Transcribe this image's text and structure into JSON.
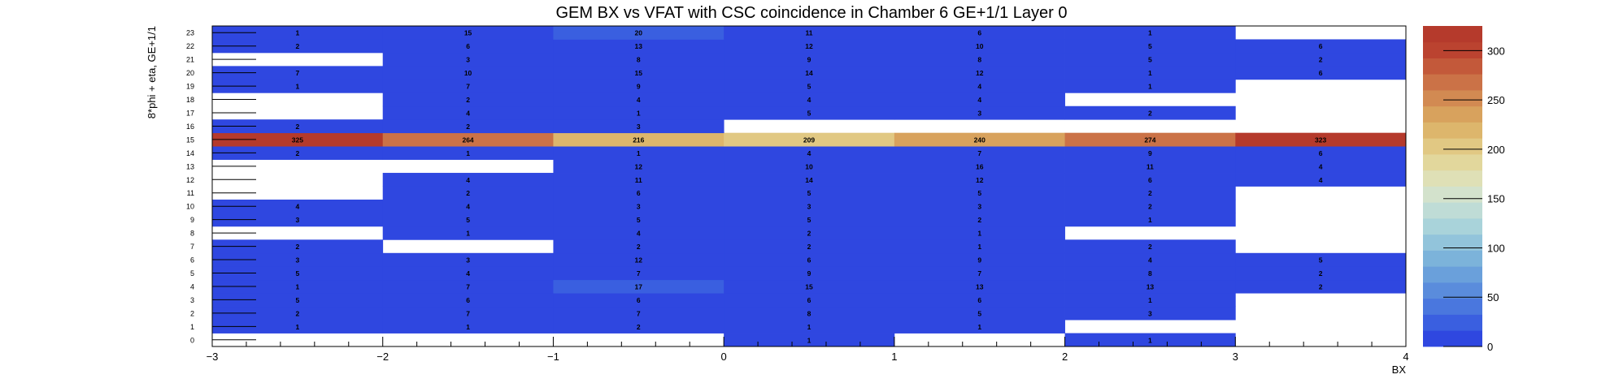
{
  "chart_data": {
    "type": "heatmap",
    "title": "GEM BX vs VFAT with CSC coincidence in Chamber 6 GE+1/1 Layer 0",
    "xlabel": "BX",
    "ylabel": "8*phi + eta, GE+1/1",
    "xlim": [
      -3,
      4
    ],
    "x_bins": [
      -3,
      -2,
      -1,
      0,
      1,
      2,
      3,
      4
    ],
    "x_ticks": [
      "−3",
      "−2",
      "−1",
      "0",
      "1",
      "2",
      "3",
      "4"
    ],
    "y_bins": [
      "0",
      "1",
      "2",
      "3",
      "4",
      "5",
      "6",
      "7",
      "8",
      "9",
      "10",
      "11",
      "12",
      "13",
      "14",
      "15",
      "16",
      "17",
      "18",
      "19",
      "20",
      "21",
      "22",
      "23"
    ],
    "zlim": [
      0,
      325
    ],
    "z_ticks": [
      0,
      50,
      100,
      150,
      200,
      250,
      300
    ],
    "values": [
      [
        null,
        null,
        null,
        1,
        null,
        1,
        null
      ],
      [
        1,
        1,
        2,
        1,
        1,
        null,
        null
      ],
      [
        2,
        7,
        7,
        8,
        5,
        3,
        null
      ],
      [
        5,
        6,
        6,
        6,
        6,
        1,
        null
      ],
      [
        1,
        7,
        17,
        15,
        13,
        13,
        2
      ],
      [
        5,
        4,
        7,
        9,
        7,
        8,
        2
      ],
      [
        3,
        3,
        12,
        6,
        9,
        4,
        5
      ],
      [
        2,
        null,
        2,
        2,
        1,
        2,
        null
      ],
      [
        null,
        1,
        4,
        2,
        1,
        null,
        null
      ],
      [
        3,
        5,
        5,
        5,
        2,
        1,
        null
      ],
      [
        4,
        4,
        3,
        3,
        3,
        2,
        null
      ],
      [
        null,
        2,
        6,
        5,
        5,
        2,
        null
      ],
      [
        null,
        4,
        11,
        14,
        12,
        6,
        4
      ],
      [
        null,
        null,
        12,
        10,
        16,
        11,
        4
      ],
      [
        2,
        1,
        1,
        4,
        7,
        9,
        6
      ],
      [
        325,
        264,
        216,
        209,
        240,
        274,
        323
      ],
      [
        2,
        2,
        3,
        null,
        null,
        null,
        null
      ],
      [
        null,
        4,
        1,
        5,
        3,
        2,
        null
      ],
      [
        null,
        2,
        4,
        4,
        4,
        null,
        null
      ],
      [
        1,
        7,
        9,
        5,
        4,
        1,
        null
      ],
      [
        7,
        10,
        15,
        14,
        12,
        1,
        6
      ],
      [
        null,
        3,
        8,
        9,
        8,
        5,
        2
      ],
      [
        2,
        6,
        13,
        12,
        10,
        5,
        6
      ],
      [
        1,
        15,
        20,
        11,
        6,
        1,
        null
      ]
    ],
    "palette": [
      "#2f47e0",
      "#3a5fe0",
      "#4a77de",
      "#5a8cdc",
      "#6aa0db",
      "#7cb3da",
      "#92c4db",
      "#a9d3da",
      "#bfdcd6",
      "#d3e2cc",
      "#dfe0b6",
      "#e2d79c",
      "#e1c883",
      "#ddb66c",
      "#d8a25d",
      "#d28a52",
      "#cb7247",
      "#c3593a",
      "#bb4330",
      "#b53a2c"
    ],
    "grid": false,
    "legend": "right"
  }
}
